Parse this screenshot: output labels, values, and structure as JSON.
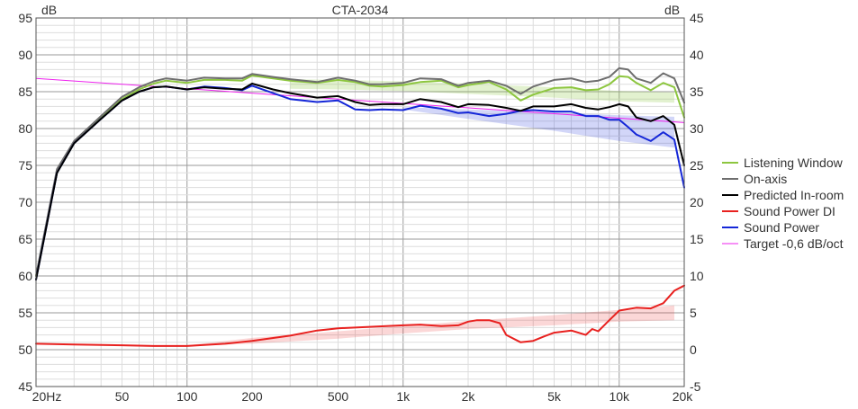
{
  "chart_data": {
    "type": "line",
    "title": "CTA-2034",
    "x_scale": "log",
    "xlim": [
      20,
      20000
    ],
    "ylim_left": [
      45,
      95
    ],
    "ylim_right": [
      -5,
      45
    ],
    "y_unit_left": "dB",
    "y_unit_right": "dB",
    "x_ticks": [
      {
        "value": 20,
        "label": "20Hz"
      },
      {
        "value": 50,
        "label": "50"
      },
      {
        "value": 100,
        "label": "100"
      },
      {
        "value": 200,
        "label": "200"
      },
      {
        "value": 500,
        "label": "500"
      },
      {
        "value": 1000,
        "label": "1k"
      },
      {
        "value": 2000,
        "label": "2k"
      },
      {
        "value": 5000,
        "label": "5k"
      },
      {
        "value": 10000,
        "label": "10k"
      },
      {
        "value": 20000,
        "label": "20k"
      }
    ],
    "y_ticks_left": [
      95,
      90,
      85,
      80,
      75,
      70,
      65,
      60,
      55,
      50,
      45
    ],
    "y_ticks_right": [
      45,
      40,
      35,
      30,
      25,
      20,
      15,
      10,
      5,
      0,
      -5
    ],
    "grid": true,
    "legend_position": "right",
    "series": [
      {
        "name": "Listening Window",
        "color": "#8dc63f",
        "axis": "left",
        "x": [
          20,
          25,
          30,
          40,
          50,
          60,
          70,
          80,
          100,
          120,
          150,
          180,
          200,
          250,
          300,
          400,
          500,
          600,
          700,
          800,
          1000,
          1200,
          1500,
          1800,
          2000,
          2500,
          3000,
          3500,
          4000,
          5000,
          6000,
          7000,
          8000,
          9000,
          10000,
          11000,
          12000,
          14000,
          16000,
          18000,
          20000
        ],
        "y": [
          60,
          74,
          78,
          81.5,
          84,
          85.3,
          86.1,
          86.5,
          86.2,
          86.6,
          86.6,
          86.5,
          87.2,
          86.8,
          86.5,
          86.2,
          86.6,
          86.3,
          85.8,
          85.7,
          85.9,
          86.3,
          86.5,
          85.6,
          85.9,
          86.3,
          85.3,
          83.8,
          84.6,
          85.5,
          85.6,
          85.2,
          85.3,
          86.0,
          87.1,
          87.0,
          86.2,
          85.2,
          86.2,
          85.6,
          81.5
        ]
      },
      {
        "name": "On-axis",
        "color": "#6e6e6e",
        "axis": "left",
        "x": [
          20,
          25,
          30,
          40,
          50,
          60,
          70,
          80,
          100,
          120,
          150,
          180,
          200,
          250,
          300,
          400,
          500,
          600,
          700,
          800,
          1000,
          1200,
          1500,
          1800,
          2000,
          2500,
          3000,
          3500,
          4000,
          5000,
          6000,
          7000,
          8000,
          9000,
          10000,
          11000,
          12000,
          14000,
          16000,
          18000,
          20000
        ],
        "y": [
          60,
          74.5,
          78.3,
          81.7,
          84.3,
          85.6,
          86.4,
          86.8,
          86.5,
          86.9,
          86.8,
          86.8,
          87.4,
          87,
          86.7,
          86.3,
          86.9,
          86.5,
          86.0,
          86.0,
          86.2,
          86.8,
          86.7,
          85.8,
          86.2,
          86.5,
          85.8,
          84.7,
          85.7,
          86.6,
          86.8,
          86.3,
          86.5,
          87.0,
          88.2,
          88.0,
          86.8,
          86.2,
          87.5,
          86.8,
          83.5
        ]
      },
      {
        "name": "Predicted In-room",
        "color": "#000000",
        "axis": "left",
        "x": [
          20,
          25,
          30,
          40,
          50,
          60,
          70,
          80,
          100,
          120,
          150,
          180,
          200,
          250,
          300,
          400,
          500,
          600,
          700,
          800,
          1000,
          1200,
          1500,
          1800,
          2000,
          2500,
          3000,
          3500,
          4000,
          5000,
          6000,
          7000,
          8000,
          9000,
          10000,
          11000,
          12000,
          14000,
          16000,
          18000,
          20000
        ],
        "y": [
          59.5,
          74,
          78,
          81.3,
          83.8,
          85,
          85.6,
          85.7,
          85.3,
          85.6,
          85.4,
          85.3,
          86.1,
          85.3,
          84.8,
          84.2,
          84.4,
          83.6,
          83.2,
          83.3,
          83.3,
          84.0,
          83.6,
          82.9,
          83.3,
          83.2,
          82.8,
          82.4,
          83.0,
          83.0,
          83.3,
          82.8,
          82.6,
          82.9,
          83.3,
          83.0,
          81.5,
          81.0,
          81.7,
          80.5,
          75.0
        ]
      },
      {
        "name": "Sound Power DI",
        "color": "#e8211f",
        "axis": "right",
        "x": [
          20,
          30,
          50,
          70,
          100,
          150,
          200,
          300,
          400,
          500,
          700,
          1000,
          1200,
          1500,
          1800,
          2000,
          2200,
          2500,
          2800,
          3000,
          3500,
          4000,
          4500,
          5000,
          6000,
          7000,
          7500,
          8000,
          9000,
          10000,
          12000,
          14000,
          16000,
          18000,
          20000
        ],
        "y": [
          0.8,
          0.7,
          0.6,
          0.5,
          0.5,
          0.8,
          1.2,
          1.9,
          2.6,
          2.9,
          3.1,
          3.3,
          3.4,
          3.2,
          3.3,
          3.8,
          4.0,
          4.0,
          3.6,
          2.0,
          1.0,
          1.2,
          1.8,
          2.3,
          2.6,
          2.0,
          2.8,
          2.5,
          4.0,
          5.3,
          5.7,
          5.6,
          6.3,
          8.0,
          8.7
        ]
      },
      {
        "name": "Sound Power",
        "color": "#1527d8",
        "axis": "left",
        "x": [
          20,
          25,
          30,
          40,
          50,
          60,
          70,
          80,
          100,
          120,
          150,
          180,
          200,
          250,
          300,
          400,
          500,
          600,
          700,
          800,
          1000,
          1200,
          1500,
          1800,
          2000,
          2500,
          3000,
          3500,
          4000,
          5000,
          6000,
          7000,
          8000,
          9000,
          10000,
          11000,
          12000,
          14000,
          16000,
          18000,
          20000
        ],
        "y": [
          59.5,
          74,
          78,
          81.3,
          83.8,
          85,
          85.6,
          85.7,
          85.3,
          85.7,
          85.5,
          85.2,
          85.8,
          84.8,
          84.0,
          83.6,
          83.8,
          82.6,
          82.5,
          82.6,
          82.5,
          83.1,
          82.7,
          82.1,
          82.2,
          81.7,
          82.0,
          82.4,
          82.5,
          82.3,
          82.3,
          81.7,
          81.7,
          81.2,
          81.2,
          80.2,
          79.2,
          78.3,
          79.5,
          78.5,
          72.0
        ]
      },
      {
        "name": "Target -0,6 dB/oct",
        "color": "#ee22ee",
        "axis": "left",
        "x": [
          20,
          20000
        ],
        "y": [
          86.8,
          80.8
        ]
      }
    ],
    "shaded_bands": [
      {
        "series": "Listening Window",
        "color": "#8dc63f",
        "opacity": 0.25,
        "x": [
          300,
          500,
          1000,
          2000,
          5000,
          10000,
          18000
        ],
        "upper": [
          86.7,
          86.6,
          86.4,
          86.1,
          85.6,
          85.1,
          84.9
        ],
        "lower": [
          85.4,
          85.3,
          85.1,
          84.7,
          84.2,
          83.7,
          83.5
        ]
      },
      {
        "series": "Sound Power",
        "color": "#3344dd",
        "opacity": 0.22,
        "x": [
          1000,
          2000,
          5000,
          10000,
          18000
        ],
        "upper": [
          82.9,
          82.6,
          82.2,
          81.8,
          81.6
        ],
        "lower": [
          82.6,
          81.3,
          79.7,
          78.3,
          77.4
        ]
      },
      {
        "series": "Sound Power DI",
        "color": "#e8211f",
        "opacity": 0.18,
        "x": [
          100,
          200,
          500,
          1000,
          2000,
          5000,
          10000,
          18000
        ],
        "upper": [
          0.6,
          1.6,
          2.5,
          3.2,
          3.9,
          4.7,
          5.4,
          6.0
        ],
        "lower": [
          0.5,
          0.8,
          1.5,
          2.2,
          2.8,
          3.3,
          3.8,
          4.0
        ]
      }
    ]
  }
}
